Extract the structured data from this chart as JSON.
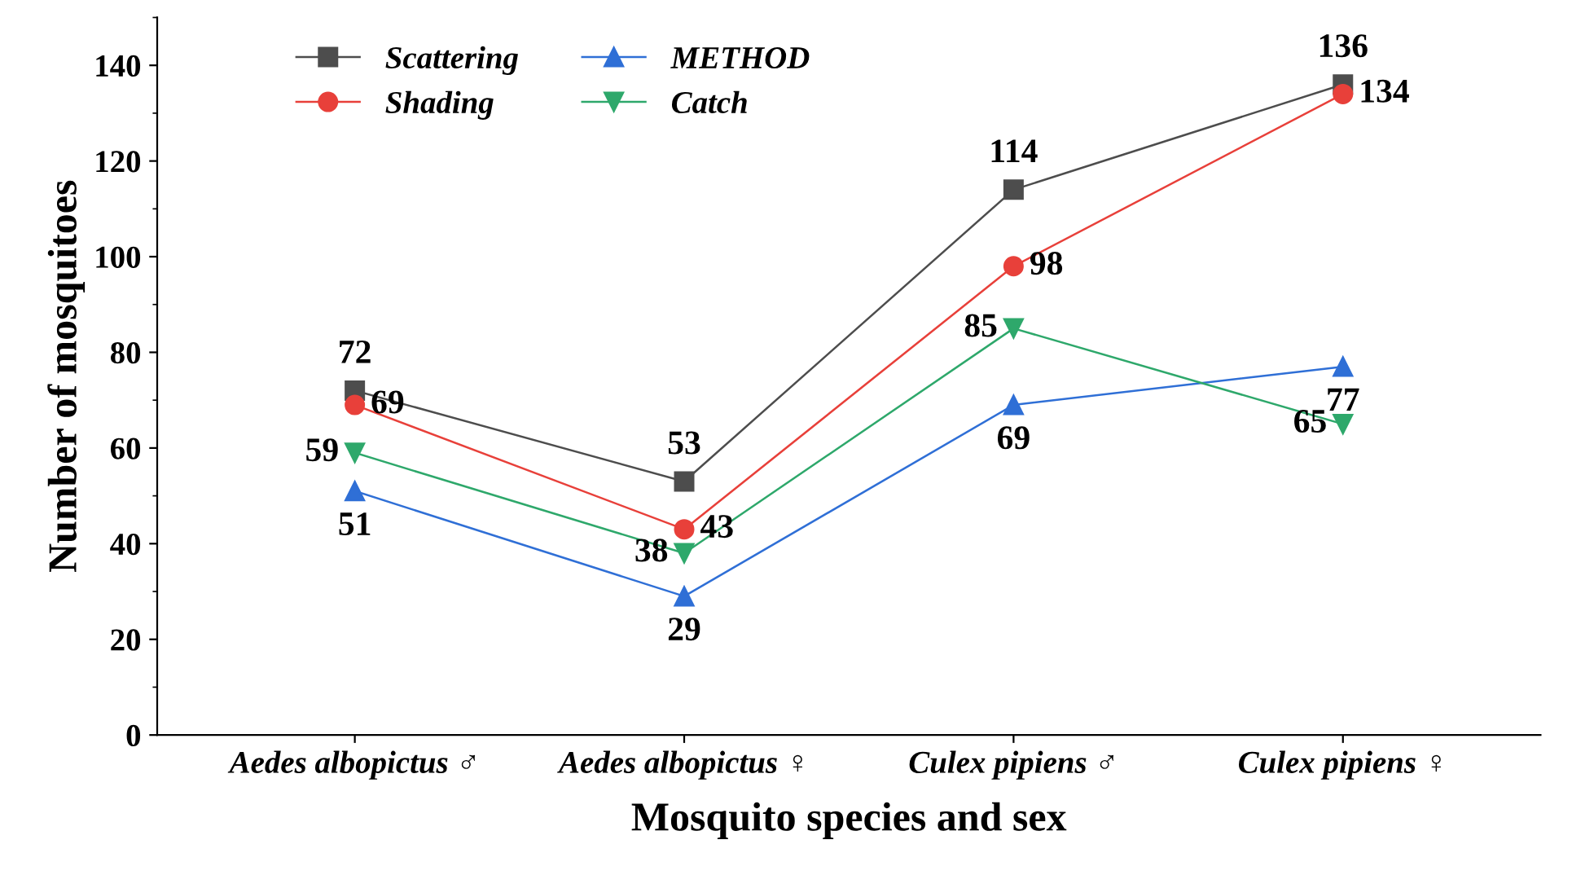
{
  "chart_data": {
    "type": "line",
    "xlabel": "Mosquito species and sex",
    "ylabel": "Number of mosquitoes",
    "categories": [
      "Aedes albopictus ♂",
      "Aedes albopictus ♀",
      "Culex pipiens ♂",
      "Culex pipiens ♀"
    ],
    "series": [
      {
        "name": "Scattering",
        "color": "#4d4d4d",
        "marker": "square",
        "values": [
          72,
          53,
          114,
          136
        ]
      },
      {
        "name": "Shading",
        "color": "#e8403a",
        "marker": "circle",
        "values": [
          69,
          43,
          98,
          134
        ]
      },
      {
        "name": "METHOD",
        "color": "#2f6fd6",
        "marker": "triangle",
        "values": [
          51,
          29,
          69,
          77
        ]
      },
      {
        "name": "Catch",
        "color": "#2ea86b",
        "marker": "triangle_down",
        "values": [
          59,
          38,
          85,
          65
        ]
      }
    ],
    "ylim": [
      0,
      150
    ],
    "yticks": [
      0,
      20,
      40,
      60,
      80,
      100,
      120,
      140
    ],
    "data_labels": true,
    "legend": "top left",
    "grid": false,
    "line_style": "solid"
  }
}
